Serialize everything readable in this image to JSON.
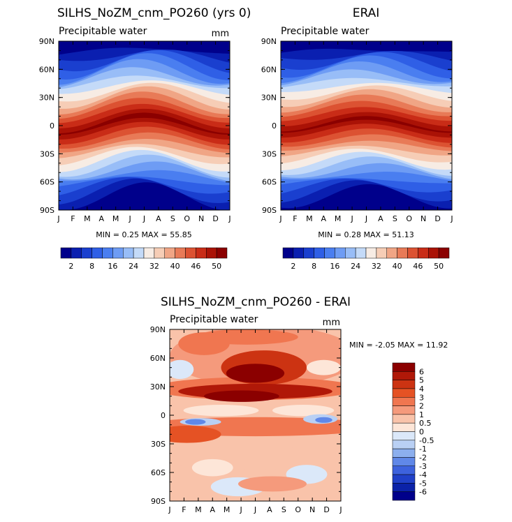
{
  "chart_data": [
    {
      "type": "heatmap",
      "title": "SILHS_NoZM_cnm_PO260 (yrs 0)",
      "subtitle": "Precipitable water",
      "units": "mm",
      "x_ticks": [
        "J",
        "F",
        "M",
        "A",
        "M",
        "J",
        "J",
        "A",
        "S",
        "O",
        "N",
        "D",
        "J"
      ],
      "y_ticks": [
        "90N",
        "60N",
        "30N",
        "0",
        "30S",
        "60S",
        "90S"
      ],
      "ylim": [
        -90,
        90
      ],
      "stats_label": "MIN =    0.25 MAX =   55.85",
      "min": 0.25,
      "max": 55.85,
      "colorbar_labels": [
        "2",
        "8",
        "16",
        "24",
        "32",
        "40",
        "46",
        "50"
      ]
    },
    {
      "type": "heatmap",
      "title": "ERAI",
      "subtitle": "Precipitable water",
      "units": "",
      "x_ticks": [
        "J",
        "F",
        "M",
        "A",
        "M",
        "J",
        "J",
        "A",
        "S",
        "O",
        "N",
        "D",
        "J"
      ],
      "y_ticks": [
        "90N",
        "60N",
        "30N",
        "0",
        "30S",
        "60S",
        "90S"
      ],
      "ylim": [
        -90,
        90
      ],
      "stats_label": "MIN =    0.28 MAX =   51.13",
      "min": 0.28,
      "max": 51.13,
      "colorbar_labels": [
        "2",
        "8",
        "16",
        "24",
        "32",
        "40",
        "46",
        "50"
      ]
    },
    {
      "type": "heatmap",
      "title": "SILHS_NoZM_cnm_PO260 - ERAI",
      "subtitle": "Precipitable water",
      "units": "mm",
      "x_ticks": [
        "J",
        "F",
        "M",
        "A",
        "M",
        "J",
        "J",
        "A",
        "S",
        "O",
        "N",
        "D",
        "J"
      ],
      "y_ticks": [
        "90N",
        "60N",
        "30N",
        "0",
        "30S",
        "60S",
        "90S"
      ],
      "ylim": [
        -90,
        90
      ],
      "stats_label": "MIN =    -2.05 MAX =   11.92",
      "min": -2.05,
      "max": 11.92,
      "colorbar_labels": [
        "6",
        "5",
        "4",
        "3",
        "2",
        "1",
        "0.5",
        "0",
        "-0.5",
        "-1",
        "-2",
        "-3",
        "-4",
        "-5",
        "-6"
      ]
    }
  ],
  "colors": {
    "abs_scale": [
      "#00008b",
      "#0a1fb0",
      "#1a3fcf",
      "#2f5fe6",
      "#4a7ef0",
      "#6e9cf4",
      "#98bdf7",
      "#c4daf8",
      "#f7ece4",
      "#f6cdb6",
      "#f0a585",
      "#e87a57",
      "#dc5232",
      "#c92c17",
      "#aa1206",
      "#8b0000"
    ],
    "diff_scale": [
      "#8b0000",
      "#b01808",
      "#cc3312",
      "#e55224",
      "#f07650",
      "#f59a7c",
      "#f9c3aa",
      "#fde6d8",
      "#dbe8f9",
      "#b9d0f4",
      "#8cafee",
      "#6088e8",
      "#3d62dd",
      "#2040c8",
      "#0b22a8",
      "#00008b"
    ]
  }
}
